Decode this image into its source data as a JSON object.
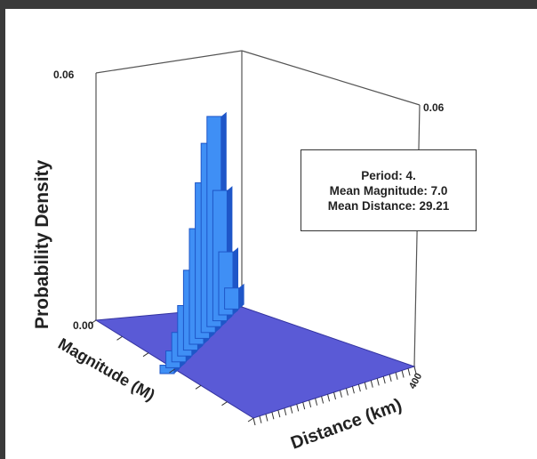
{
  "chart_data": {
    "type": "bar3d",
    "title": "",
    "zlabel": "Probability Density",
    "xlabel": "Magnitude (M)",
    "ylabel": "Distance (km)",
    "z_ticks": [
      "0.06",
      "0.00"
    ],
    "z_right_tick": "0.06",
    "zlim": [
      0,
      0.06
    ],
    "distance_axis_end_label": "400",
    "annotation": [
      "Period: 4.",
      "Mean Magnitude: 7.0",
      "Mean Distance: 29.21"
    ],
    "peak": {
      "magnitude": 7.0,
      "distance_km": 29.21,
      "density": 0.051
    },
    "colors": {
      "bars": "#3f8ff5",
      "bars_dark": "#1e56c8",
      "floor": "#5a5ad6",
      "frame": "#3a3a3a"
    }
  }
}
